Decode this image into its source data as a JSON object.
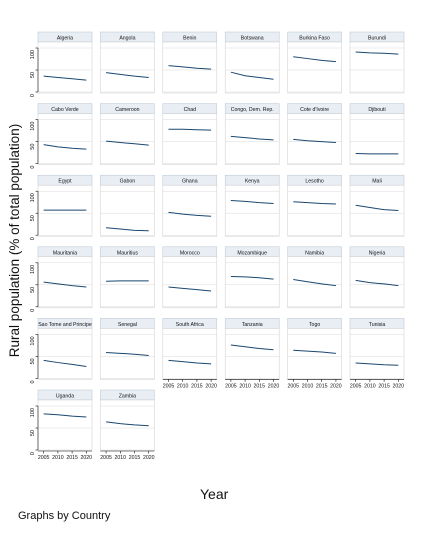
{
  "figure": {
    "ylabel": "Rural population (% of total population)",
    "xlabel": "Year",
    "note": "Graphs by Country"
  },
  "colors": {
    "line": "#1a476f",
    "header": "#e8eef4",
    "grid": "#d9d9d9",
    "axis": "#111111"
  },
  "chart_data": {
    "type": "line",
    "layout": "small-multiples",
    "x": [
      2005,
      2010,
      2015,
      2020
    ],
    "xlim": [
      2003,
      2022
    ],
    "ylim": [
      0,
      100
    ],
    "yticks": [
      0,
      50,
      100
    ],
    "xticks": [
      2005,
      2010,
      2015,
      2020
    ],
    "grid": true,
    "panels": [
      {
        "name": "Algeria",
        "values": [
          36,
          33,
          30,
          27
        ]
      },
      {
        "name": "Angola",
        "values": [
          44,
          40,
          36,
          33
        ]
      },
      {
        "name": "Benin",
        "values": [
          60,
          57,
          54,
          52
        ]
      },
      {
        "name": "Botswana",
        "values": [
          45,
          37,
          33,
          29
        ]
      },
      {
        "name": "Burkina Faso",
        "values": [
          80,
          76,
          72,
          69
        ]
      },
      {
        "name": "Burundi",
        "values": [
          91,
          89,
          88,
          86
        ]
      },
      {
        "name": "Cabo Verde",
        "values": [
          43,
          38,
          35,
          33
        ]
      },
      {
        "name": "Cameroon",
        "values": [
          51,
          48,
          45,
          42
        ]
      },
      {
        "name": "Chad",
        "values": [
          78,
          78,
          77,
          76
        ]
      },
      {
        "name": "Congo, Dem. Rep.",
        "values": [
          62,
          59,
          56,
          54
        ]
      },
      {
        "name": "Cote d'Ivoire",
        "values": [
          55,
          52,
          50,
          48
        ]
      },
      {
        "name": "Djibouti",
        "values": [
          23,
          22,
          22,
          22
        ]
      },
      {
        "name": "Egypt",
        "values": [
          57,
          57,
          57,
          57
        ]
      },
      {
        "name": "Gabon",
        "values": [
          17,
          14,
          11,
          10
        ]
      },
      {
        "name": "Ghana",
        "values": [
          52,
          48,
          45,
          43
        ]
      },
      {
        "name": "Kenya",
        "values": [
          79,
          77,
          74,
          72
        ]
      },
      {
        "name": "Lesotho",
        "values": [
          76,
          74,
          72,
          71
        ]
      },
      {
        "name": "Mali",
        "values": [
          68,
          63,
          58,
          56
        ]
      },
      {
        "name": "Mauritania",
        "values": [
          56,
          52,
          48,
          45
        ]
      },
      {
        "name": "Mauritius",
        "values": [
          58,
          59,
          59,
          59
        ]
      },
      {
        "name": "Morocco",
        "values": [
          45,
          42,
          39,
          36
        ]
      },
      {
        "name": "Mozambique",
        "values": [
          69,
          68,
          66,
          63
        ]
      },
      {
        "name": "Namibia",
        "values": [
          62,
          57,
          52,
          48
        ]
      },
      {
        "name": "Nigeria",
        "values": [
          60,
          55,
          52,
          48
        ]
      },
      {
        "name": "Sao Tome and Principe",
        "values": [
          41,
          36,
          32,
          27
        ]
      },
      {
        "name": "Senegal",
        "values": [
          59,
          57,
          55,
          52
        ]
      },
      {
        "name": "South Africa",
        "values": [
          41,
          38,
          35,
          33
        ]
      },
      {
        "name": "Tanzania",
        "values": [
          76,
          72,
          68,
          65
        ]
      },
      {
        "name": "Togo",
        "values": [
          64,
          62,
          60,
          57
        ]
      },
      {
        "name": "Tunisia",
        "values": [
          35,
          33,
          31,
          30
        ]
      },
      {
        "name": "Uganda",
        "values": [
          82,
          80,
          77,
          75
        ]
      },
      {
        "name": "Zambia",
        "values": [
          64,
          60,
          57,
          55
        ]
      }
    ]
  }
}
